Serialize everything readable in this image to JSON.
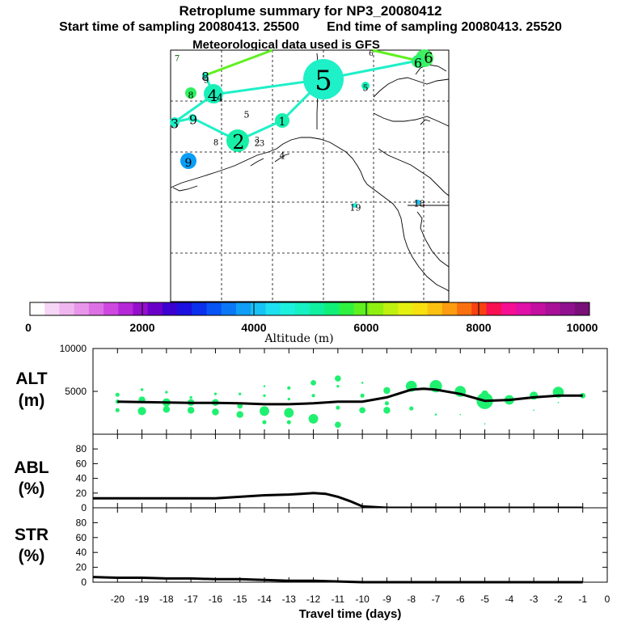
{
  "header": {
    "title": "Retroplume summary for NP3_20080412",
    "start_label": "Start time of sampling 20080413. 25500",
    "end_label": "End time of sampling 20080413. 25520",
    "met_label": "Meteorological data used is GFS"
  },
  "colorbar": {
    "ticks": [
      "0",
      "2000",
      "4000",
      "6000",
      "8000",
      "10000"
    ],
    "label": "Altitude (m)",
    "colors": [
      "#ffffff",
      "#f6d6f6",
      "#f0b6f0",
      "#e896ea",
      "#de70e6",
      "#ce48e0",
      "#b528d8",
      "#9410cc",
      "#6a00c8",
      "#3c00d0",
      "#1c10e0",
      "#0a30ee",
      "#0654f4",
      "#0a78f6",
      "#109ef6",
      "#18c2f4",
      "#1ee0f0",
      "#1ef0de",
      "#16f0c2",
      "#10f0a0",
      "#10f078",
      "#30f040",
      "#60f020",
      "#90f010",
      "#bef010",
      "#e4f010",
      "#f8e010",
      "#fcc010",
      "#fc9c10",
      "#fa7010",
      "#f84010",
      "#f81050",
      "#f41090",
      "#e010a8",
      "#c410a0",
      "#a81098",
      "#901090",
      "#781078"
    ]
  },
  "map": {
    "labels": [
      {
        "text": "7",
        "x": 219,
        "y": 73,
        "size": 10,
        "color": "#006000"
      },
      {
        "text": "8",
        "x": 254,
        "y": 95,
        "size": 15,
        "color": "#000000"
      },
      {
        "text": "9",
        "x": 255,
        "y": 100,
        "size": 10,
        "color": "#000000"
      },
      {
        "text": "8",
        "x": 236,
        "y": 118,
        "size": 11,
        "color": "#000000"
      },
      {
        "text": "4",
        "x": 263,
        "y": 118,
        "size": 20,
        "color": "#000000"
      },
      {
        "text": "4",
        "x": 272,
        "y": 122,
        "size": 13,
        "color": "#000000"
      },
      {
        "text": "3",
        "x": 216,
        "y": 153,
        "size": 16,
        "color": "#000000"
      },
      {
        "text": "9",
        "x": 239,
        "y": 148,
        "size": 16,
        "color": "#000000"
      },
      {
        "text": "5",
        "x": 305,
        "y": 142,
        "size": 11,
        "color": "#000000"
      },
      {
        "text": "1",
        "x": 349,
        "y": 151,
        "size": 14,
        "color": "#000000"
      },
      {
        "text": "5",
        "x": 400,
        "y": 100,
        "size": 34,
        "color": "#000000"
      },
      {
        "text": "5",
        "x": 452,
        "y": 109,
        "size": 11,
        "color": "#000000"
      },
      {
        "text": "6",
        "x": 459,
        "y": 67,
        "size": 9,
        "color": "#000000"
      },
      {
        "text": "6",
        "x": 517,
        "y": 78,
        "size": 16,
        "color": "#000000"
      },
      {
        "text": "6",
        "x": 530,
        "y": 72,
        "size": 18,
        "color": "#000000"
      },
      {
        "text": "8",
        "x": 267,
        "y": 177,
        "size": 10,
        "color": "#000000"
      },
      {
        "text": "2",
        "x": 295,
        "y": 176,
        "size": 24,
        "color": "#000000"
      },
      {
        "text": "2",
        "x": 318,
        "y": 177,
        "size": 11,
        "color": "#000000"
      },
      {
        "text": "3",
        "x": 324,
        "y": 178,
        "size": 10,
        "color": "#000000"
      },
      {
        "text": "3",
        "x": 318,
        "y": 174,
        "size": 9,
        "color": "#000000"
      },
      {
        "text": "4",
        "x": 349,
        "y": 193,
        "size": 11,
        "color": "#000000"
      },
      {
        "text": "9",
        "x": 233,
        "y": 202,
        "size": 14,
        "color": "#000000"
      },
      {
        "text": "1",
        "x": 436,
        "y": 257,
        "size": 11,
        "color": "#000000"
      },
      {
        "text": "9",
        "x": 443,
        "y": 257,
        "size": 11,
        "color": "#000000"
      },
      {
        "text": "1",
        "x": 515,
        "y": 252,
        "size": 11,
        "color": "#000000"
      },
      {
        "text": "8",
        "x": 522,
        "y": 252,
        "size": 11,
        "color": "#000000"
      }
    ]
  },
  "chart_data": [
    {
      "type": "scatter",
      "panel": "ALT",
      "ylabel": "ALT\n(m)",
      "ylabel_lines": [
        "ALT",
        "(m)"
      ],
      "ylim": [
        0,
        10000
      ],
      "ytick_labels": [
        "10000",
        "5000"
      ],
      "xlim": [
        -21,
        0
      ],
      "xlabel": "Travel time (days)",
      "xtick_labels": [
        "-20",
        "-19",
        "-18",
        "-17",
        "-16",
        "-15",
        "-14",
        "-13",
        "-12",
        "-11",
        "-10",
        "-9",
        "-8",
        "-7",
        "-6",
        "-5",
        "-4",
        "-3",
        "-2",
        "-1",
        "0"
      ],
      "mean_altitude": {
        "x": [
          -20,
          -19,
          -18,
          -17,
          -16,
          -15,
          -14,
          -13,
          -12,
          -11,
          -10,
          -9,
          -8,
          -7.5,
          -7,
          -6,
          -5,
          -4,
          -3,
          -2,
          -1
        ],
        "y": [
          3800,
          3750,
          3700,
          3650,
          3650,
          3600,
          3500,
          3500,
          3600,
          3800,
          3800,
          4300,
          5200,
          5300,
          5200,
          4700,
          3900,
          4000,
          4300,
          4500,
          4500
        ]
      },
      "clusters": [
        {
          "x": -20,
          "y": 4600,
          "s": 3
        },
        {
          "x": -20,
          "y": 3800,
          "s": 3
        },
        {
          "x": -20,
          "y": 2800,
          "s": 3
        },
        {
          "x": -19,
          "y": 5200,
          "s": 2
        },
        {
          "x": -19,
          "y": 4000,
          "s": 5
        },
        {
          "x": -19,
          "y": 2700,
          "s": 6
        },
        {
          "x": -18,
          "y": 4900,
          "s": 2
        },
        {
          "x": -18,
          "y": 3700,
          "s": 6
        },
        {
          "x": -18,
          "y": 2900,
          "s": 5
        },
        {
          "x": -17,
          "y": 4300,
          "s": 2
        },
        {
          "x": -17,
          "y": 3700,
          "s": 5
        },
        {
          "x": -17,
          "y": 2800,
          "s": 5
        },
        {
          "x": -16,
          "y": 4700,
          "s": 2
        },
        {
          "x": -16,
          "y": 3700,
          "s": 5
        },
        {
          "x": -16,
          "y": 2600,
          "s": 5
        },
        {
          "x": -15,
          "y": 4700,
          "s": 2
        },
        {
          "x": -15,
          "y": 3300,
          "s": 4
        },
        {
          "x": -15,
          "y": 2300,
          "s": 5
        },
        {
          "x": -14,
          "y": 5600,
          "s": 1.5
        },
        {
          "x": -14,
          "y": 4500,
          "s": 2
        },
        {
          "x": -14,
          "y": 2700,
          "s": 7
        },
        {
          "x": -14,
          "y": 1400,
          "s": 3
        },
        {
          "x": -13,
          "y": 5400,
          "s": 2.5
        },
        {
          "x": -13,
          "y": 4100,
          "s": 2
        },
        {
          "x": -13,
          "y": 2500,
          "s": 7
        },
        {
          "x": -13,
          "y": 1400,
          "s": 3
        },
        {
          "x": -12,
          "y": 6000,
          "s": 4
        },
        {
          "x": -12,
          "y": 4500,
          "s": 2.5
        },
        {
          "x": -12,
          "y": 1800,
          "s": 7
        },
        {
          "x": -11,
          "y": 6500,
          "s": 4.5
        },
        {
          "x": -11,
          "y": 5600,
          "s": 2
        },
        {
          "x": -11,
          "y": 3100,
          "s": 3
        },
        {
          "x": -11,
          "y": 1100,
          "s": 4.5
        },
        {
          "x": -10,
          "y": 6000,
          "s": 1.5
        },
        {
          "x": -10,
          "y": 4500,
          "s": 3
        },
        {
          "x": -10,
          "y": 2800,
          "s": 4.5
        },
        {
          "x": -9,
          "y": 5100,
          "s": 5
        },
        {
          "x": -9,
          "y": 3600,
          "s": 3
        },
        {
          "x": -9,
          "y": 2800,
          "s": 5
        },
        {
          "x": -8,
          "y": 5600,
          "s": 8
        },
        {
          "x": -8,
          "y": 3000,
          "s": 3
        },
        {
          "x": -7,
          "y": 5600,
          "s": 9
        },
        {
          "x": -7,
          "y": 2300,
          "s": 1.5
        },
        {
          "x": -6,
          "y": 5000,
          "s": 8
        },
        {
          "x": -6,
          "y": 2300,
          "s": 1
        },
        {
          "x": -5,
          "y": 4700,
          "s": 5
        },
        {
          "x": -5,
          "y": 3900,
          "s": 12
        },
        {
          "x": -5,
          "y": 1200,
          "s": 1
        },
        {
          "x": -4,
          "y": 4000,
          "s": 7
        },
        {
          "x": -3,
          "y": 4500,
          "s": 6
        },
        {
          "x": -3,
          "y": 2800,
          "s": 1
        },
        {
          "x": -2,
          "y": 4900,
          "s": 8
        },
        {
          "x": -2,
          "y": 3700,
          "s": 1
        },
        {
          "x": -1,
          "y": 4500,
          "s": 4
        }
      ],
      "cluster_color": "#20f070"
    },
    {
      "type": "line",
      "panel": "ABL",
      "ylabel": "ABL\n(%)",
      "ylabel_lines": [
        "ABL",
        "(%)"
      ],
      "ylim": [
        0,
        100
      ],
      "ytick_labels": [
        "80",
        "60",
        "40",
        "20",
        "0"
      ],
      "xlim": [
        -21,
        0
      ],
      "x": [
        -21,
        -19,
        -17,
        -16,
        -15,
        -14,
        -13,
        -12.5,
        -12,
        -11.5,
        -11,
        -10.5,
        -10,
        -9,
        -8,
        -7,
        -6,
        -5,
        -4,
        -3,
        -2,
        -1
      ],
      "y": [
        13,
        13,
        13,
        13,
        15,
        17,
        18,
        19,
        20,
        19,
        15,
        9,
        2,
        0,
        0,
        0,
        0,
        0,
        0,
        0,
        0,
        0
      ]
    },
    {
      "type": "line",
      "panel": "STR",
      "ylabel": "STR\n(%)",
      "ylabel_lines": [
        "STR",
        "(%)"
      ],
      "ylim": [
        0,
        100
      ],
      "ytick_labels": [
        "80",
        "60",
        "40",
        "20",
        "0"
      ],
      "xlim": [
        -21,
        0
      ],
      "x": [
        -21,
        -20,
        -19,
        -18,
        -17,
        -16,
        -15,
        -14,
        -13,
        -12,
        -11,
        -10,
        -9,
        -8,
        -7,
        -6,
        -5,
        -4,
        -3,
        -2,
        -1
      ],
      "y": [
        7,
        6,
        6,
        5,
        5,
        4,
        4,
        3,
        2,
        2,
        1,
        0,
        0,
        0,
        0,
        0,
        0,
        0,
        0,
        0,
        0
      ]
    }
  ]
}
